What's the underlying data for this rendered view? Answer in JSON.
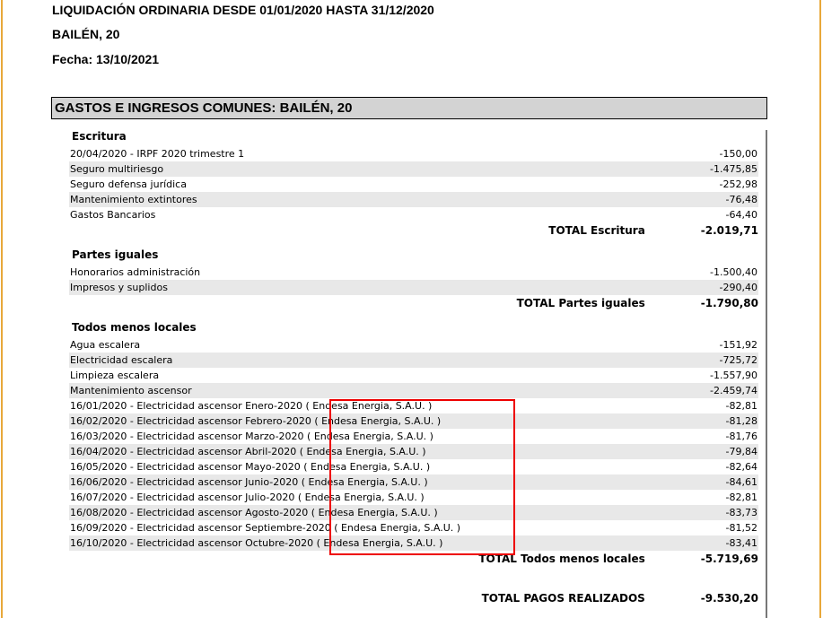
{
  "header": {
    "title": "LIQUIDACIÓN ORDINARIA DESDE 01/01/2020 HASTA 31/12/2020",
    "address": "BAILÉN, 20",
    "date": "Fecha:  13/10/2021"
  },
  "band": {
    "title": "GASTOS E INGRESOS COMUNES: BAILÉN, 20"
  },
  "sections": [
    {
      "title": "Escritura",
      "rows": [
        {
          "concept": "20/04/2020 - IRPF 2020 trimestre 1",
          "amount": "-150,00"
        },
        {
          "concept": "Seguro multiriesgo",
          "amount": "-1.475,85"
        },
        {
          "concept": "Seguro defensa jurídica",
          "amount": "-252,98"
        },
        {
          "concept": "Mantenimiento extintores",
          "amount": "-76,48"
        },
        {
          "concept": "Gastos Bancarios",
          "amount": "-64,40"
        }
      ],
      "total_label": "TOTAL Escritura",
      "total": "-2.019,71"
    },
    {
      "title": "Partes iguales",
      "rows": [
        {
          "concept": "Honorarios administración",
          "amount": "-1.500,40"
        },
        {
          "concept": "Impresos y suplidos",
          "amount": "-290,40"
        }
      ],
      "total_label": "TOTAL Partes iguales",
      "total": "-1.790,80"
    },
    {
      "title": "Todos menos locales",
      "rows": [
        {
          "concept": "Agua escalera",
          "amount": "-151,92"
        },
        {
          "concept": "Electricidad escalera",
          "amount": "-725,72"
        },
        {
          "concept": "Limpieza escalera",
          "amount": "-1.557,90"
        },
        {
          "concept": "Mantenimiento ascensor",
          "amount": "-2.459,74"
        },
        {
          "concept": "16/01/2020 - Electricidad ascensor Enero-2020 ( Endesa Energia, S.A.U. )",
          "amount": "-82,81"
        },
        {
          "concept": "16/02/2020 - Electricidad ascensor Febrero-2020 ( Endesa Energia, S.A.U. )",
          "amount": "-81,28"
        },
        {
          "concept": "16/03/2020 - Electricidad ascensor Marzo-2020 ( Endesa Energia, S.A.U. )",
          "amount": "-81,76"
        },
        {
          "concept": "16/04/2020 - Electricidad ascensor Abril-2020 ( Endesa Energia, S.A.U. )",
          "amount": "-79,84"
        },
        {
          "concept": "16/05/2020 - Electricidad ascensor Mayo-2020 ( Endesa Energia, S.A.U. )",
          "amount": "-82,64"
        },
        {
          "concept": "16/06/2020 - Electricidad ascensor Junio-2020 ( Endesa Energia, S.A.U. )",
          "amount": "-84,61"
        },
        {
          "concept": "16/07/2020 - Electricidad ascensor Julio-2020 ( Endesa Energia, S.A.U. )",
          "amount": "-82,81"
        },
        {
          "concept": "16/08/2020 - Electricidad ascensor Agosto-2020 ( Endesa Energia, S.A.U. )",
          "amount": "-83,73"
        },
        {
          "concept": "16/09/2020 - Electricidad ascensor Septiembre-2020 ( Endesa Energia, S.A.U. )",
          "amount": "-81,52"
        },
        {
          "concept": "16/10/2020 - Electricidad ascensor Octubre-2020 ( Endesa Energia, S.A.U. )",
          "amount": "-83,41"
        }
      ],
      "total_label": "TOTAL Todos menos locales",
      "total": "-5.719,69"
    }
  ],
  "grand_total": {
    "label": "TOTAL PAGOS REALIZADOS",
    "value": "-9.530,20"
  },
  "colors": {
    "highlight_box": "#ee0000",
    "row_alt": "#e8e8e8",
    "band": "#d3d3d3"
  }
}
